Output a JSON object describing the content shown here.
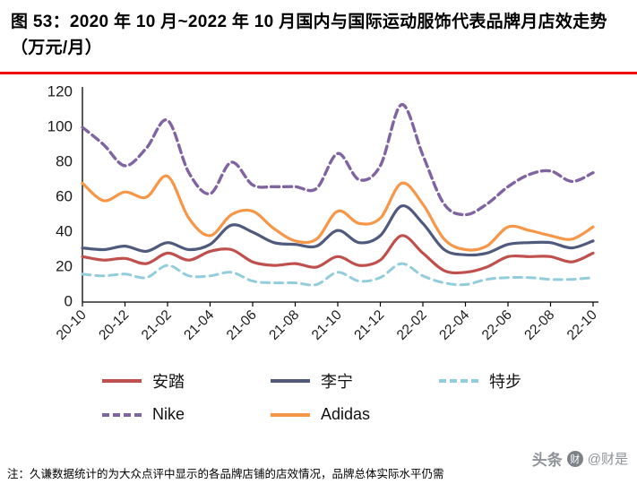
{
  "header": {
    "title": "图 53：2020 年 10 月~2022 年 10 月国内与国际运动服饰代表品牌月店效走势（万元/月）"
  },
  "footer": {
    "note": "注：久谦数据统计的为大众点评中显示的各品牌店铺的店效情况，品牌总体实际水平仍需"
  },
  "watermark": {
    "source": "头条",
    "logo_glyph": "财",
    "handle": "@财是"
  },
  "chart_data": {
    "type": "line",
    "title": "2020年10月~2022年10月国内与国际运动服饰代表品牌月店效走势（万元/月）",
    "xlabel": "",
    "ylabel": "",
    "ylim": [
      0,
      120
    ],
    "ytick_step": 20,
    "x_label_every": 2,
    "grid": false,
    "legend_position": "bottom",
    "categories": [
      "20-10",
      "20-11",
      "20-12",
      "21-01",
      "21-02",
      "21-03",
      "21-04",
      "21-05",
      "21-06",
      "21-07",
      "21-08",
      "21-09",
      "21-10",
      "21-11",
      "21-12",
      "22-01",
      "22-02",
      "22-03",
      "22-04",
      "22-05",
      "22-06",
      "22-07",
      "22-08",
      "22-09",
      "22-10"
    ],
    "series": [
      {
        "id": "anta",
        "name": "安踏",
        "color": "#C0504D",
        "dash": null,
        "width": 3.2,
        "values": [
          26,
          24,
          25,
          22,
          28,
          24,
          29,
          30,
          23,
          21,
          22,
          20,
          26,
          21,
          24,
          38,
          28,
          18,
          17,
          20,
          26,
          26,
          26,
          23,
          28
        ]
      },
      {
        "id": "lining",
        "name": "李宁",
        "color": "#4F5A7D",
        "dash": null,
        "width": 3.2,
        "values": [
          31,
          30,
          32,
          29,
          34,
          30,
          33,
          44,
          40,
          34,
          33,
          32,
          41,
          34,
          38,
          55,
          45,
          30,
          27,
          28,
          33,
          34,
          34,
          31,
          35
        ]
      },
      {
        "id": "xtep",
        "name": "特步",
        "color": "#92CDDC",
        "dash": "9 6",
        "width": 3.0,
        "values": [
          16,
          15,
          16,
          14,
          21,
          15,
          15,
          17,
          12,
          11,
          11,
          10,
          17,
          12,
          14,
          22,
          15,
          11,
          10,
          13,
          14,
          14,
          13,
          13,
          14
        ]
      },
      {
        "id": "nike",
        "name": "Nike",
        "color": "#8064A2",
        "dash": "9 5",
        "width": 3.4,
        "values": [
          100,
          90,
          78,
          88,
          104,
          74,
          62,
          80,
          67,
          66,
          66,
          65,
          85,
          70,
          78,
          113,
          84,
          56,
          50,
          56,
          66,
          73,
          75,
          69,
          74
        ]
      },
      {
        "id": "adidas",
        "name": "Adidas",
        "color": "#F79646",
        "dash": null,
        "width": 3.2,
        "values": [
          68,
          58,
          63,
          60,
          72,
          48,
          38,
          50,
          52,
          42,
          35,
          36,
          52,
          45,
          48,
          68,
          56,
          36,
          30,
          32,
          43,
          41,
          38,
          36,
          43
        ]
      }
    ]
  }
}
